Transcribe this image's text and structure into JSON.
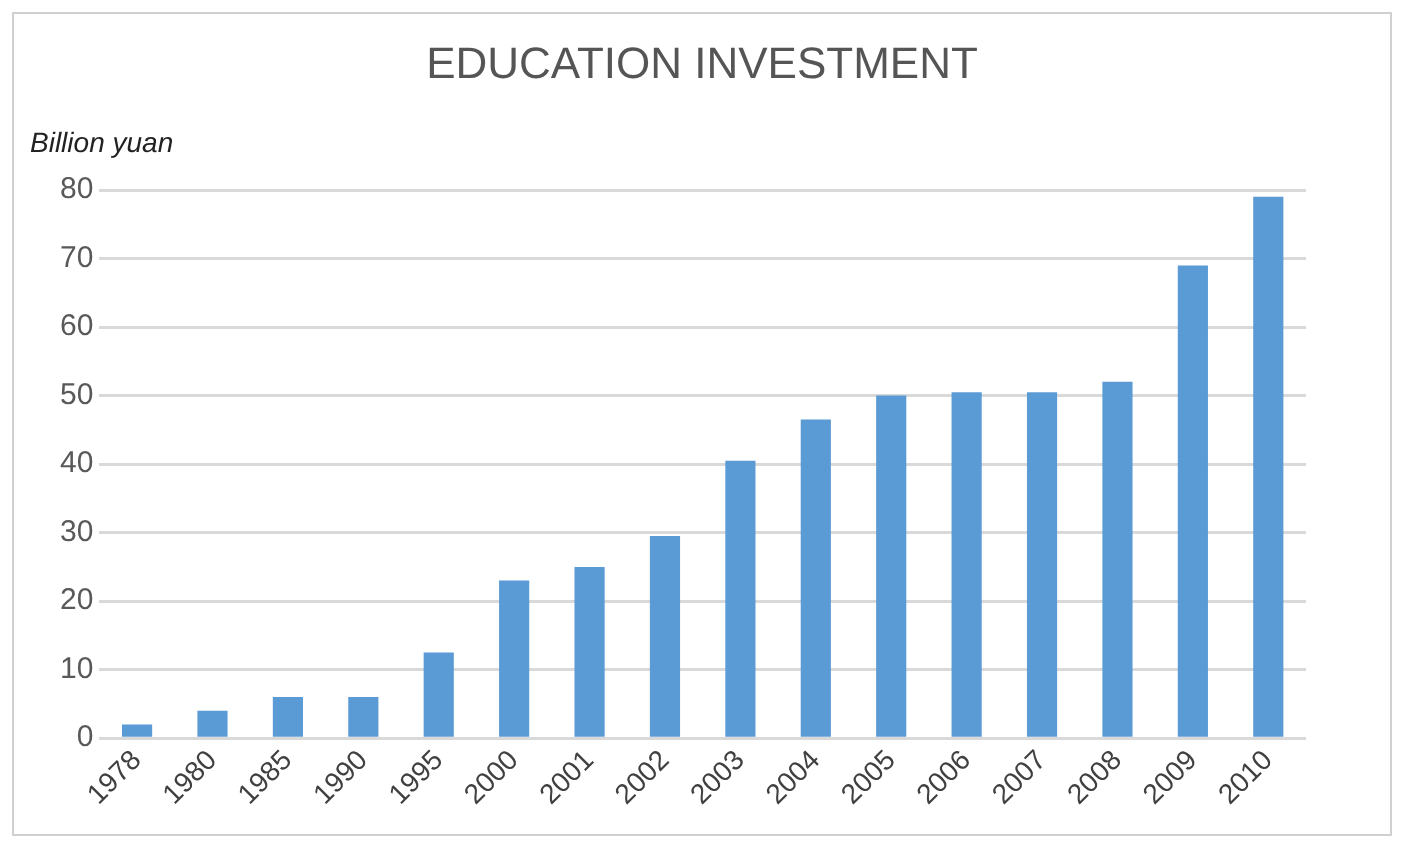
{
  "chart_data": {
    "type": "bar",
    "title": "EDUCATION INVESTMENT",
    "ylabel": "Billion yuan",
    "categories": [
      "1978",
      "1980",
      "1985",
      "1990",
      "1995",
      "2000",
      "2001",
      "2002",
      "2003",
      "2004",
      "2005",
      "2006",
      "2007",
      "2008",
      "2009",
      "2010"
    ],
    "values": [
      2,
      4,
      6,
      6,
      12.5,
      23,
      25,
      29.5,
      40.5,
      46.5,
      50,
      50.5,
      50.5,
      52,
      69,
      79
    ],
    "color": "#5b9bd5",
    "ylim": [
      0,
      80
    ],
    "yticks": [
      0,
      10,
      20,
      30,
      40,
      50,
      60,
      70,
      80
    ],
    "grid": "y",
    "legend": false
  }
}
